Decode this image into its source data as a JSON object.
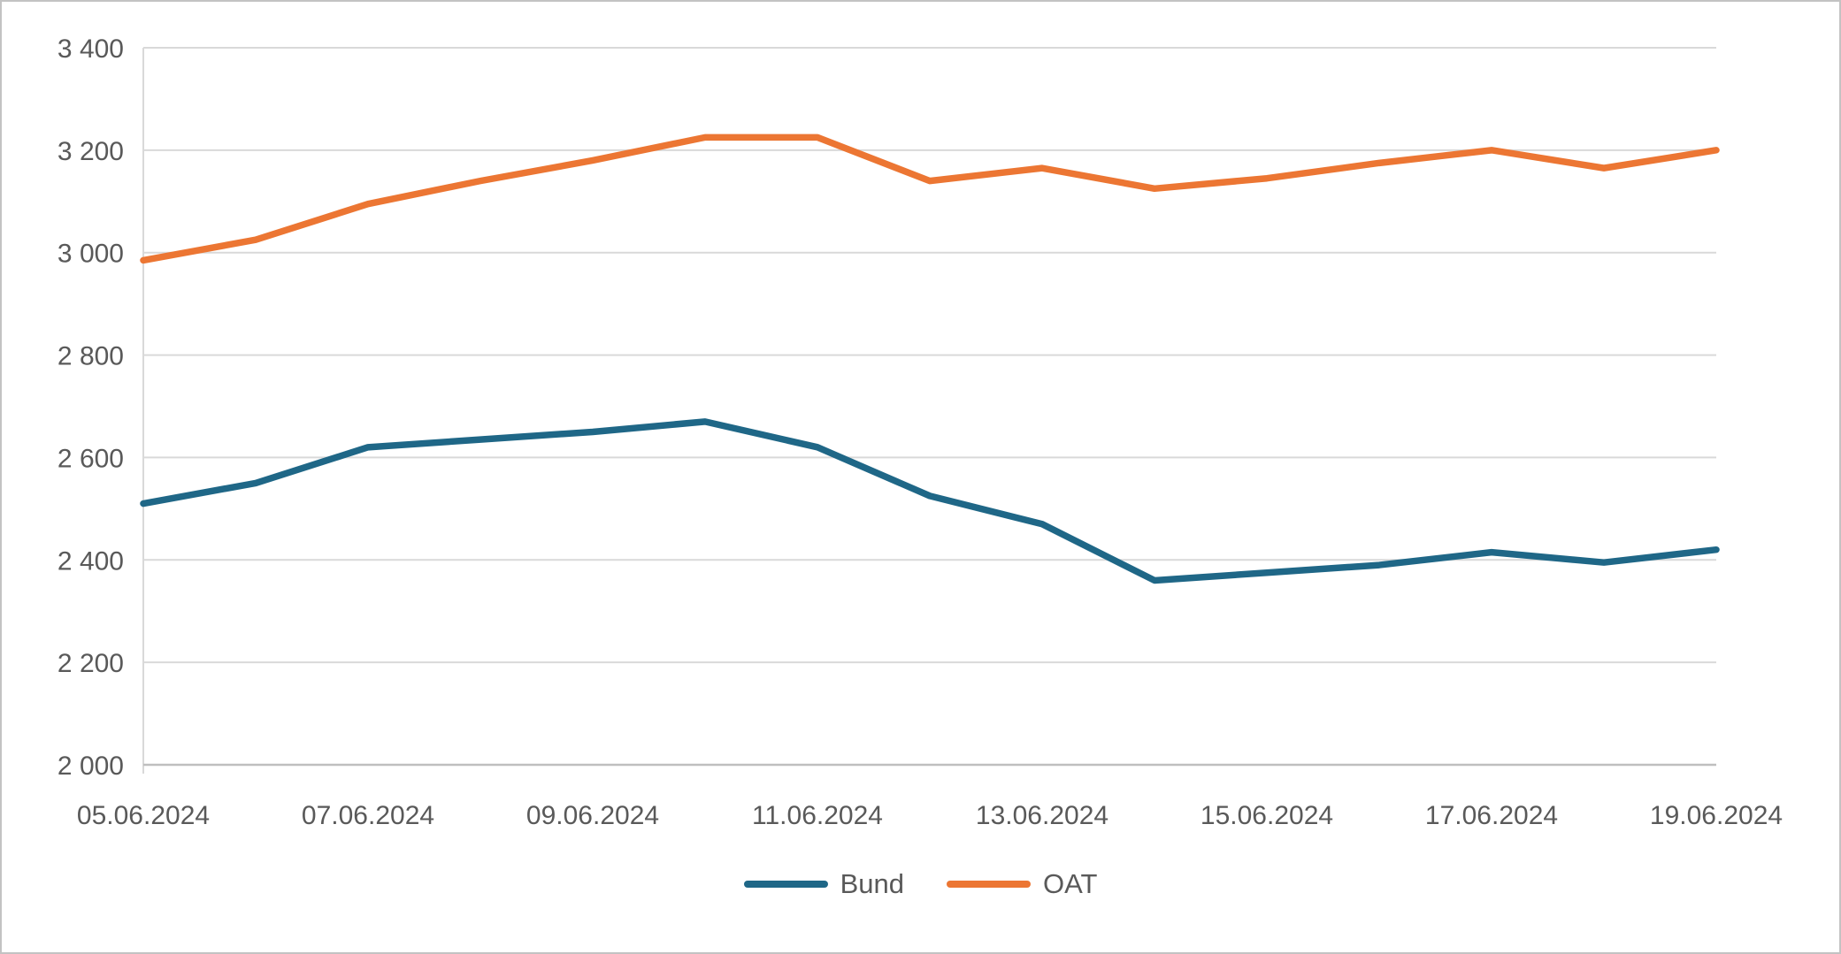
{
  "chart_data": {
    "type": "line",
    "title": "",
    "xlabel": "",
    "ylabel": "",
    "categories": [
      "05.06.2024",
      "06.06.2024",
      "07.06.2024",
      "08.06.2024",
      "09.06.2024",
      "10.06.2024",
      "11.06.2024",
      "12.06.2024",
      "13.06.2024",
      "14.06.2024",
      "15.06.2024",
      "16.06.2024",
      "17.06.2024",
      "18.06.2024",
      "19.06.2024"
    ],
    "series": [
      {
        "name": "Bund",
        "color": "#1F6787",
        "values": [
          2510,
          2550,
          2620,
          2635,
          2650,
          2670,
          2620,
          2525,
          2470,
          2360,
          2375,
          2390,
          2415,
          2395,
          2420
        ]
      },
      {
        "name": "OAT",
        "color": "#EC7633",
        "values": [
          2985,
          3025,
          3095,
          3140,
          3180,
          3225,
          3225,
          3140,
          3165,
          3125,
          3145,
          3175,
          3200,
          3165,
          3200
        ]
      }
    ],
    "ylim": [
      2000,
      3400
    ],
    "y_ticks": [
      {
        "value": 2000,
        "label": "2 000"
      },
      {
        "value": 2200,
        "label": "2 200"
      },
      {
        "value": 2400,
        "label": "2 400"
      },
      {
        "value": 2600,
        "label": "2 600"
      },
      {
        "value": 2800,
        "label": "2 800"
      },
      {
        "value": 3000,
        "label": "3 000"
      },
      {
        "value": 3200,
        "label": "3 200"
      },
      {
        "value": 3400,
        "label": "3 400"
      }
    ],
    "x_ticks": [
      {
        "category_index": 0,
        "label": "05.06.2024"
      },
      {
        "category_index": 2,
        "label": "07.06.2024"
      },
      {
        "category_index": 4,
        "label": "09.06.2024"
      },
      {
        "category_index": 6,
        "label": "11.06.2024"
      },
      {
        "category_index": 8,
        "label": "13.06.2024"
      },
      {
        "category_index": 10,
        "label": "15.06.2024"
      },
      {
        "category_index": 12,
        "label": "17.06.2024"
      },
      {
        "category_index": 14,
        "label": "19.06.2024"
      }
    ],
    "grid": true,
    "legend_position": "bottom"
  },
  "colors": {
    "gridline": "#D9D9D9",
    "axis_line": "#BFBFBF",
    "y_axis_line": "#D9D9D9",
    "tick_text": "#595959"
  }
}
